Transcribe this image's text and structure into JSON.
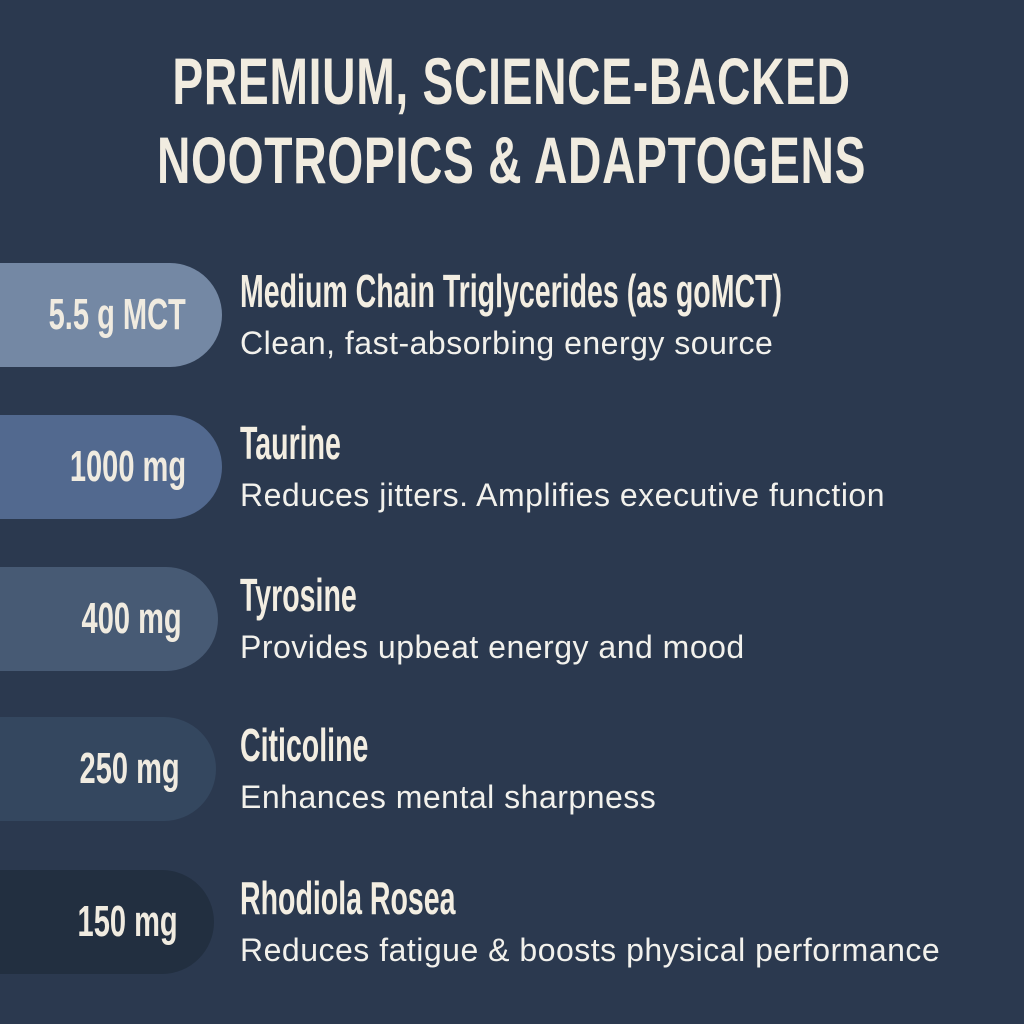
{
  "page": {
    "background_color": "#2b394f"
  },
  "headline": {
    "line1": "PREMIUM, SCIENCE-BACKED",
    "line2": "NOOTROPICS & ADAPTOGENS",
    "color": "#f1ece0"
  },
  "ingredients": [
    {
      "dose": "5.5 g MCT",
      "name": "Medium Chain Triglycerides (as goMCT)",
      "description": "Clean, fast-absorbing energy source",
      "pill_color": "#7488a4"
    },
    {
      "dose": "1000 mg",
      "name": "Taurine",
      "description": "Reduces jitters. Amplifies executive function",
      "pill_color": "#52698f"
    },
    {
      "dose": "400 mg",
      "name": "Tyrosine",
      "description": "Provides upbeat energy and mood",
      "pill_color": "#475a74"
    },
    {
      "dose": "250 mg",
      "name": "Citicoline",
      "description": "Enhances mental sharpness",
      "pill_color": "#34475f"
    },
    {
      "dose": "150 mg",
      "name": "Rhodiola Rosea",
      "description": "Reduces fatigue & boosts physical performance",
      "pill_color": "#222f40"
    }
  ]
}
